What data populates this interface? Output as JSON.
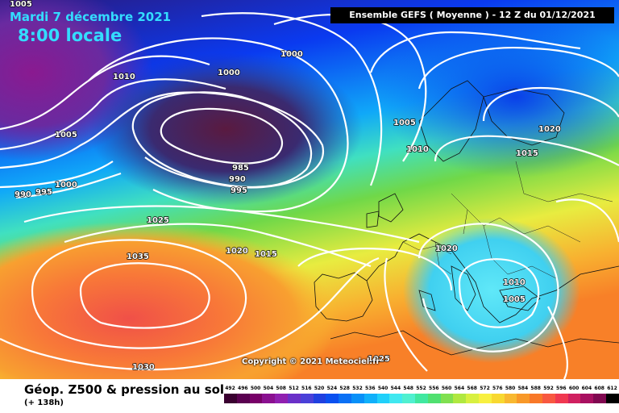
{
  "header": {
    "date": "Mardi 7 décembre 2021",
    "local_time": "8:00 locale",
    "run_info": "Ensemble GEFS  ( Moyenne )  -  12 Z du 01/12/2021"
  },
  "copyright": "Copyright © 2021 Meteociel.fr",
  "isobar_labels": [
    "1005",
    "1010",
    "1005",
    "990",
    "995",
    "1000",
    "1000",
    "1000",
    "985",
    "990",
    "995",
    "1025",
    "1035",
    "1020",
    "1015",
    "1030",
    "1005",
    "1010",
    "1020",
    "1015",
    "1020",
    "1010",
    "1005",
    "1025"
  ],
  "legend": {
    "title": "Géop. Z500 & pression au sol",
    "subtitle": "(+ 138h)",
    "scale_values": [
      "492",
      "496",
      "500",
      "504",
      "508",
      "512",
      "516",
      "520",
      "524",
      "528",
      "532",
      "536",
      "540",
      "544",
      "548",
      "552",
      "556",
      "560",
      "564",
      "568",
      "572",
      "576",
      "580",
      "584",
      "588",
      "592",
      "596",
      "600",
      "604",
      "608",
      "612"
    ],
    "scale_colors": [
      "#3a0030",
      "#5a0050",
      "#780068",
      "#8a1090",
      "#9020b0",
      "#6a30c8",
      "#4a40d8",
      "#2040e0",
      "#0a50f0",
      "#0a70f5",
      "#0890f8",
      "#10b0fa",
      "#20d0fa",
      "#40e8f0",
      "#50f0d0",
      "#40e8a0",
      "#50e070",
      "#80e050",
      "#b0e840",
      "#d8f040",
      "#f8f040",
      "#f8d830",
      "#f8b830",
      "#f89828",
      "#f87828",
      "#f85840",
      "#f03850",
      "#d02060",
      "#a81060",
      "#800850",
      "#000000"
    ]
  }
}
